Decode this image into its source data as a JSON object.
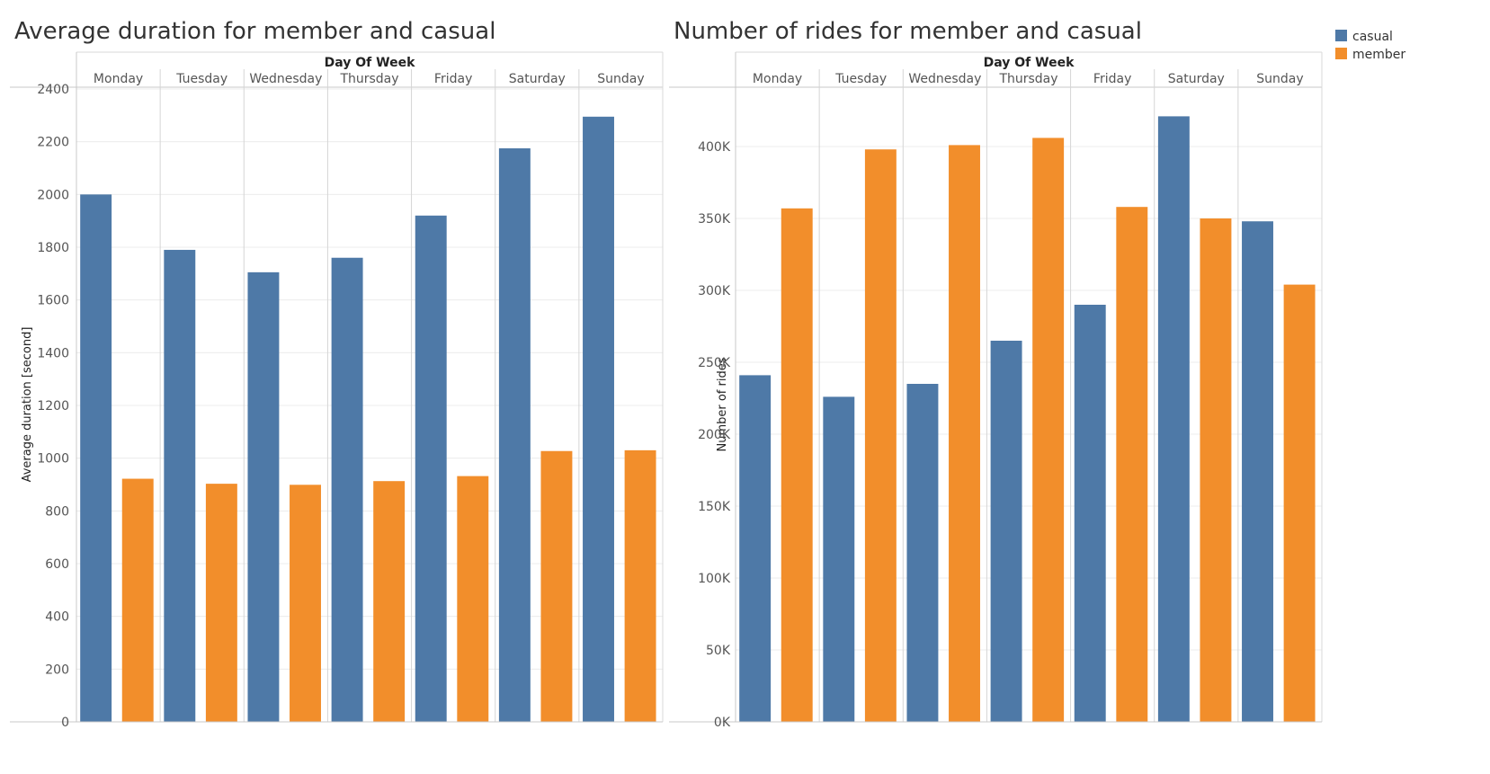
{
  "legend": {
    "items": [
      {
        "label": "casual",
        "color": "#4e79a7"
      },
      {
        "label": "member",
        "color": "#f28e2b"
      }
    ]
  },
  "chart_data": [
    {
      "type": "bar",
      "title": "Average duration for member and casual",
      "column_header": "Day Of Week",
      "categories": [
        "Monday",
        "Tuesday",
        "Wednesday",
        "Thursday",
        "Friday",
        "Saturday",
        "Sunday"
      ],
      "ylabel": "Average duration [second]",
      "ylim": [
        0,
        2400
      ],
      "yticks": [
        0,
        200,
        400,
        600,
        800,
        1000,
        1200,
        1400,
        1600,
        1800,
        2000,
        2200,
        2400
      ],
      "ytick_labels": [
        "0",
        "200",
        "400",
        "600",
        "800",
        "1000",
        "1200",
        "1400",
        "1600",
        "1800",
        "2000",
        "2200",
        "2400"
      ],
      "grid": true,
      "series": [
        {
          "name": "casual",
          "color": "#4e79a7",
          "values": [
            2000,
            1790,
            1705,
            1760,
            1920,
            2175,
            2295
          ]
        },
        {
          "name": "member",
          "color": "#f28e2b",
          "values": [
            922,
            903,
            899,
            913,
            932,
            1027,
            1030
          ]
        }
      ]
    },
    {
      "type": "bar",
      "title": "Number of rides for member and casual",
      "column_header": "Day Of Week",
      "categories": [
        "Monday",
        "Tuesday",
        "Wednesday",
        "Thursday",
        "Friday",
        "Saturday",
        "Sunday"
      ],
      "ylabel": "Number of rides",
      "ylim": [
        0,
        440000
      ],
      "yticks": [
        0,
        50000,
        100000,
        150000,
        200000,
        250000,
        300000,
        350000,
        400000
      ],
      "ytick_labels": [
        "0K",
        "50K",
        "100K",
        "150K",
        "200K",
        "250K",
        "300K",
        "350K",
        "400K"
      ],
      "grid": true,
      "series": [
        {
          "name": "casual",
          "color": "#4e79a7",
          "values": [
            241000,
            226000,
            235000,
            265000,
            290000,
            421000,
            348000
          ]
        },
        {
          "name": "member",
          "color": "#f28e2b",
          "values": [
            357000,
            398000,
            401000,
            406000,
            358000,
            350000,
            304000
          ]
        }
      ]
    }
  ]
}
